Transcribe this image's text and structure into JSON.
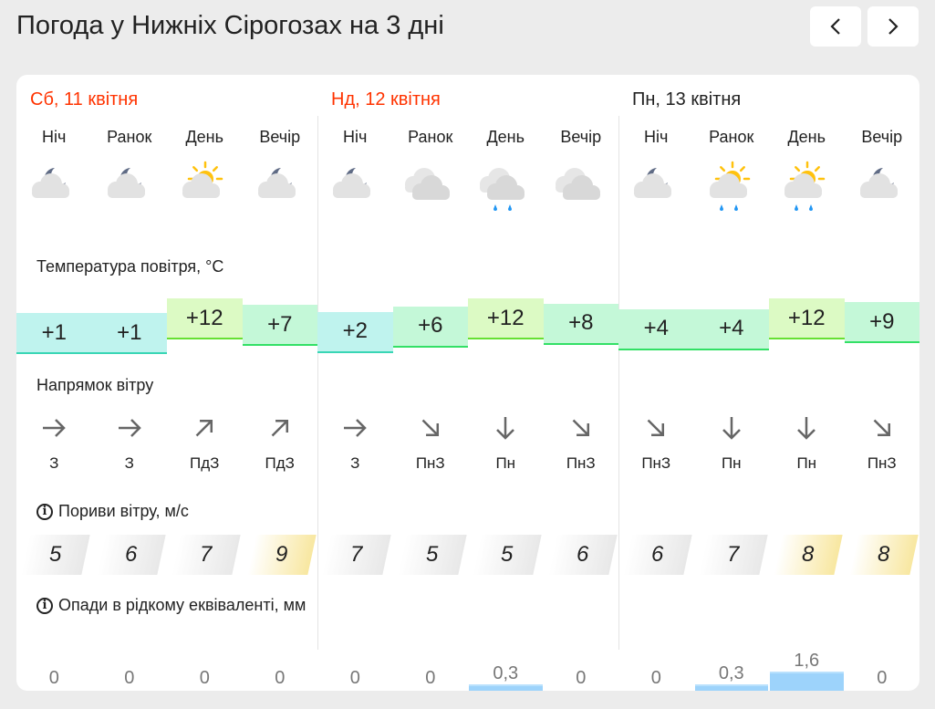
{
  "title": "Погода у Нижніх Сірогозах на 3 дні",
  "nav": {
    "prev": "‹",
    "next": "›"
  },
  "labels": {
    "temperature": "Температура повітря, °C",
    "wind_direction": "Напрямок вітру",
    "gusts": "Пориви вітру, м/с",
    "precipitation": "Опади в рідкому еквіваленті, мм",
    "info": "i"
  },
  "colors": {
    "weekend": "#ff3300",
    "cold": "#bff3ee",
    "mild": "#c4f8d8",
    "warm": "#dcfac4",
    "precip": "#9dd3fb",
    "gust_high": "#f8e7a0"
  },
  "days": [
    {
      "label": "Сб, 11 квітня",
      "weekend": true,
      "periods": [
        {
          "name": "Ніч",
          "icon": "moon-cloud",
          "temp": "+1",
          "t": 1,
          "wind_dir": "З",
          "wind_arrow": "right",
          "gust": "5",
          "precip": "0",
          "p": 0
        },
        {
          "name": "Ранок",
          "icon": "moon-cloud",
          "temp": "+1",
          "t": 1,
          "wind_dir": "З",
          "wind_arrow": "right",
          "gust": "6",
          "precip": "0",
          "p": 0
        },
        {
          "name": "День",
          "icon": "sun-cloud",
          "temp": "+12",
          "t": 12,
          "wind_dir": "ПдЗ",
          "wind_arrow": "up-right",
          "gust": "7",
          "precip": "0",
          "p": 0
        },
        {
          "name": "Вечір",
          "icon": "moon-cloud-heavy",
          "temp": "+7",
          "t": 7,
          "wind_dir": "ПдЗ",
          "wind_arrow": "up-right",
          "gust": "9",
          "precip": "0",
          "p": 0
        }
      ]
    },
    {
      "label": "Нд, 12 квітня",
      "weekend": true,
      "periods": [
        {
          "name": "Ніч",
          "icon": "moon-cloud",
          "temp": "+2",
          "t": 2,
          "wind_dir": "З",
          "wind_arrow": "right",
          "gust": "7",
          "precip": "0",
          "p": 0
        },
        {
          "name": "Ранок",
          "icon": "cloud",
          "temp": "+6",
          "t": 6,
          "wind_dir": "ПнЗ",
          "wind_arrow": "down-right",
          "gust": "5",
          "precip": "0",
          "p": 0
        },
        {
          "name": "День",
          "icon": "cloud-rain",
          "temp": "+12",
          "t": 12,
          "wind_dir": "Пн",
          "wind_arrow": "down",
          "gust": "5",
          "precip": "0,3",
          "p": 0.3
        },
        {
          "name": "Вечір",
          "icon": "cloud",
          "temp": "+8",
          "t": 8,
          "wind_dir": "ПнЗ",
          "wind_arrow": "down-right",
          "gust": "6",
          "precip": "0",
          "p": 0
        }
      ]
    },
    {
      "label": "Пн, 13 квітня",
      "weekend": false,
      "periods": [
        {
          "name": "Ніч",
          "icon": "moon-cloud-heavy",
          "temp": "+4",
          "t": 4,
          "wind_dir": "ПнЗ",
          "wind_arrow": "down-right",
          "gust": "6",
          "precip": "0",
          "p": 0
        },
        {
          "name": "Ранок",
          "icon": "sun-cloud-rain",
          "temp": "+4",
          "t": 4,
          "wind_dir": "Пн",
          "wind_arrow": "down",
          "gust": "7",
          "precip": "0,3",
          "p": 0.3
        },
        {
          "name": "День",
          "icon": "sun-cloud-rain",
          "temp": "+12",
          "t": 12,
          "wind_dir": "Пн",
          "wind_arrow": "down",
          "gust": "8",
          "precip": "1,6",
          "p": 1.6
        },
        {
          "name": "Вечір",
          "icon": "moon-cloud",
          "temp": "+9",
          "t": 9,
          "wind_dir": "ПнЗ",
          "wind_arrow": "down-right",
          "gust": "8",
          "precip": "0",
          "p": 0
        }
      ]
    }
  ]
}
